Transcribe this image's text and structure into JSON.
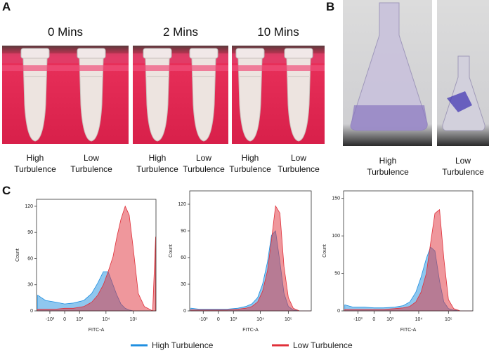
{
  "panel_a": {
    "label": "A",
    "photos": [
      {
        "caption": "0 Mins",
        "tubes": [
          "High Turbulence",
          "Low Turbulence"
        ]
      },
      {
        "caption": "2 Mins",
        "tubes": [
          "High Turbulence",
          "Low Turbulence"
        ]
      },
      {
        "caption": "10 Mins",
        "tubes": [
          "High Turbulence",
          "Low Turbulence"
        ]
      }
    ]
  },
  "panel_b": {
    "label": "B",
    "photos": [
      {
        "caption": "High Turbulence"
      },
      {
        "caption": "Low Turbulence"
      }
    ]
  },
  "panel_c": {
    "label": "C"
  },
  "chart_data": [
    {
      "type": "area",
      "xlabel": "FITC-A",
      "ylabel": "Count",
      "xscale": "biexponential",
      "x": [
        -3000,
        -1500,
        -500,
        0,
        500,
        1500,
        3000,
        5000,
        8000,
        12000,
        18000,
        25000,
        35000,
        50000,
        70000,
        100000,
        150000,
        250000,
        500000,
        640000
      ],
      "series": [
        {
          "name": "High Turbulence",
          "color": "#1f8fe0",
          "values": [
            18,
            12,
            10,
            8,
            9,
            12,
            20,
            32,
            45,
            45,
            30,
            18,
            8,
            3,
            1,
            0,
            0,
            0,
            0,
            0
          ]
        },
        {
          "name": "Low Turbulence",
          "color": "#e0303a",
          "values": [
            2,
            2,
            2,
            3,
            3,
            5,
            10,
            18,
            30,
            45,
            62,
            85,
            105,
            120,
            110,
            70,
            20,
            5,
            0,
            85
          ]
        }
      ],
      "xlim": [
        -3300,
        660000
      ],
      "ylim": [
        0,
        128
      ],
      "xticks": [
        {
          "value": -1000,
          "label": "-10³"
        },
        0,
        {
          "value": 1000,
          "label": "10³"
        },
        {
          "value": 10000,
          "label": "10⁴"
        },
        {
          "value": 100000,
          "label": "10⁵"
        }
      ],
      "yticks": [
        0,
        30,
        60,
        90,
        120
      ]
    },
    {
      "type": "area",
      "xlabel": "FITC-A",
      "ylabel": "Count",
      "xscale": "biexponential",
      "x": [
        -3000,
        -1500,
        -500,
        0,
        500,
        1500,
        3000,
        5000,
        8000,
        12000,
        18000,
        25000,
        35000,
        50000,
        70000,
        100000,
        150000,
        250000,
        500000,
        640000
      ],
      "series": [
        {
          "name": "High Turbulence",
          "color": "#1f8fe0",
          "values": [
            3,
            2,
            2,
            2,
            2,
            3,
            5,
            8,
            15,
            30,
            55,
            85,
            90,
            55,
            20,
            5,
            1,
            0,
            0,
            0
          ]
        },
        {
          "name": "Low Turbulence",
          "color": "#e0303a",
          "values": [
            1,
            1,
            1,
            1,
            1,
            2,
            3,
            5,
            10,
            22,
            45,
            80,
            118,
            110,
            50,
            15,
            3,
            0,
            0,
            0
          ]
        }
      ],
      "xlim": [
        -3300,
        660000
      ],
      "ylim": [
        0,
        135
      ],
      "xticks": [
        {
          "value": -1000,
          "label": "-10³"
        },
        0,
        {
          "value": 1000,
          "label": "10³"
        },
        {
          "value": 10000,
          "label": "10⁴"
        },
        {
          "value": 100000,
          "label": "10⁵"
        }
      ],
      "yticks": [
        0,
        30,
        60,
        90,
        120
      ]
    },
    {
      "type": "area",
      "xlabel": "FITC-A",
      "ylabel": "Count",
      "xscale": "biexponential",
      "x": [
        -3000,
        -1500,
        -500,
        0,
        500,
        1500,
        3000,
        5000,
        8000,
        12000,
        18000,
        25000,
        35000,
        50000,
        70000,
        100000,
        150000,
        250000,
        500000,
        640000
      ],
      "series": [
        {
          "name": "High Turbulence",
          "color": "#1f8fe0",
          "values": [
            8,
            5,
            5,
            4,
            4,
            5,
            7,
            12,
            25,
            45,
            70,
            85,
            80,
            40,
            12,
            3,
            1,
            0,
            0,
            0
          ]
        },
        {
          "name": "Low Turbulence",
          "color": "#e0303a",
          "values": [
            2,
            2,
            2,
            2,
            2,
            3,
            4,
            6,
            12,
            25,
            50,
            90,
            130,
            135,
            70,
            15,
            3,
            0,
            0,
            0
          ]
        }
      ],
      "xlim": [
        -3300,
        660000
      ],
      "ylim": [
        0,
        160
      ],
      "xticks": [
        {
          "value": -1000,
          "label": "-10³"
        },
        0,
        {
          "value": 1000,
          "label": "10³"
        },
        {
          "value": 10000,
          "label": "10⁴"
        },
        {
          "value": 100000,
          "label": "10⁵"
        }
      ],
      "yticks": [
        0,
        50,
        100,
        150
      ]
    }
  ]
}
